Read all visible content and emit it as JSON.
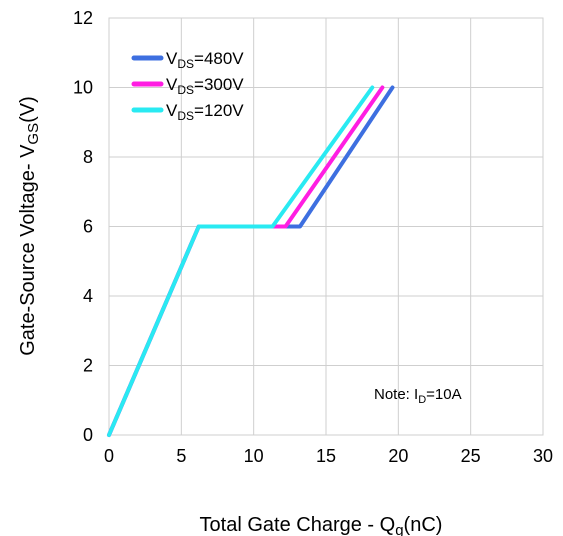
{
  "chart_data": {
    "type": "line",
    "title": "",
    "xlabel": {
      "main": "Total Gate Charge - Q",
      "sub": "g",
      "unit": "(nC)"
    },
    "ylabel": {
      "main": "Gate-Source Voltage- V",
      "sub": "GS",
      "unit": "(V)"
    },
    "xlim": [
      0,
      30
    ],
    "ylim": [
      0,
      12
    ],
    "xticks": [
      0,
      5,
      10,
      15,
      20,
      25,
      30
    ],
    "yticks": [
      0,
      2,
      4,
      6,
      8,
      10,
      12
    ],
    "grid": true,
    "legend_position": "top-left",
    "series": [
      {
        "label_main": "V",
        "label_sub": "DS",
        "label_value": "=480V",
        "color": "#3d6fe0",
        "x": [
          0,
          6.2,
          13.2,
          19.6
        ],
        "y": [
          0,
          6,
          6,
          10
        ]
      },
      {
        "label_main": "V",
        "label_sub": "DS",
        "label_value": "=300V",
        "color": "#ff1de2",
        "x": [
          0,
          6.2,
          12.2,
          18.9
        ],
        "y": [
          0,
          6,
          6,
          10
        ]
      },
      {
        "label_main": "V",
        "label_sub": "DS",
        "label_value": "=120V",
        "color": "#29eaf2",
        "x": [
          0,
          6.2,
          11.3,
          18.2
        ],
        "y": [
          0,
          6,
          6,
          10
        ]
      }
    ],
    "annotation": {
      "main": "Note: I",
      "sub": "D",
      "value": "=10A"
    }
  }
}
